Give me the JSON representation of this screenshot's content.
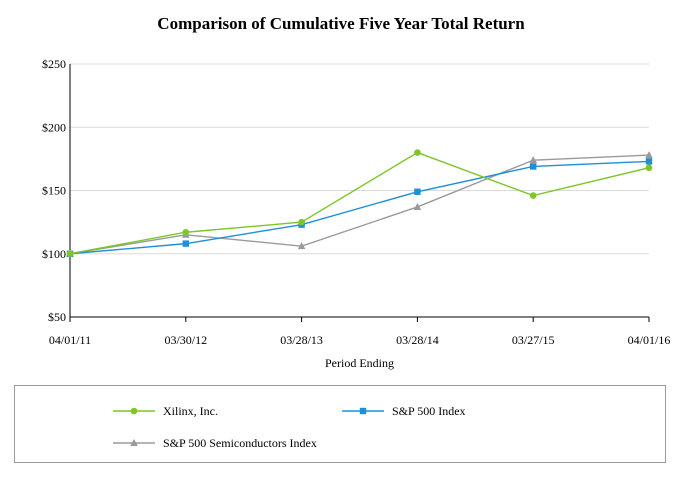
{
  "chart_data": {
    "type": "line",
    "title": "Comparison of Cumulative Five Year Total Return",
    "xlabel": "Period Ending",
    "ylabel": "",
    "categories": [
      "04/01/11",
      "03/30/12",
      "03/28/13",
      "03/28/14",
      "03/27/15",
      "04/01/16"
    ],
    "ylim": [
      50,
      250
    ],
    "yticks": [
      50,
      100,
      150,
      200,
      250
    ],
    "ytick_labels": [
      "$50",
      "$100",
      "$150",
      "$200",
      "$250"
    ],
    "grid": true,
    "legend_position": "bottom",
    "series": [
      {
        "name": "Xilinx, Inc.",
        "color": "#7dc629",
        "marker": "circle",
        "values": [
          100,
          117,
          125,
          180,
          146,
          168
        ]
      },
      {
        "name": "S&P 500 Index",
        "color": "#1f8fd6",
        "marker": "square",
        "values": [
          100,
          108,
          123,
          149,
          169,
          173
        ]
      },
      {
        "name": "S&P 500 Semiconductors Index",
        "color": "#9a9a9a",
        "marker": "triangle",
        "values": [
          100,
          115,
          106,
          137,
          174,
          178
        ]
      }
    ]
  }
}
